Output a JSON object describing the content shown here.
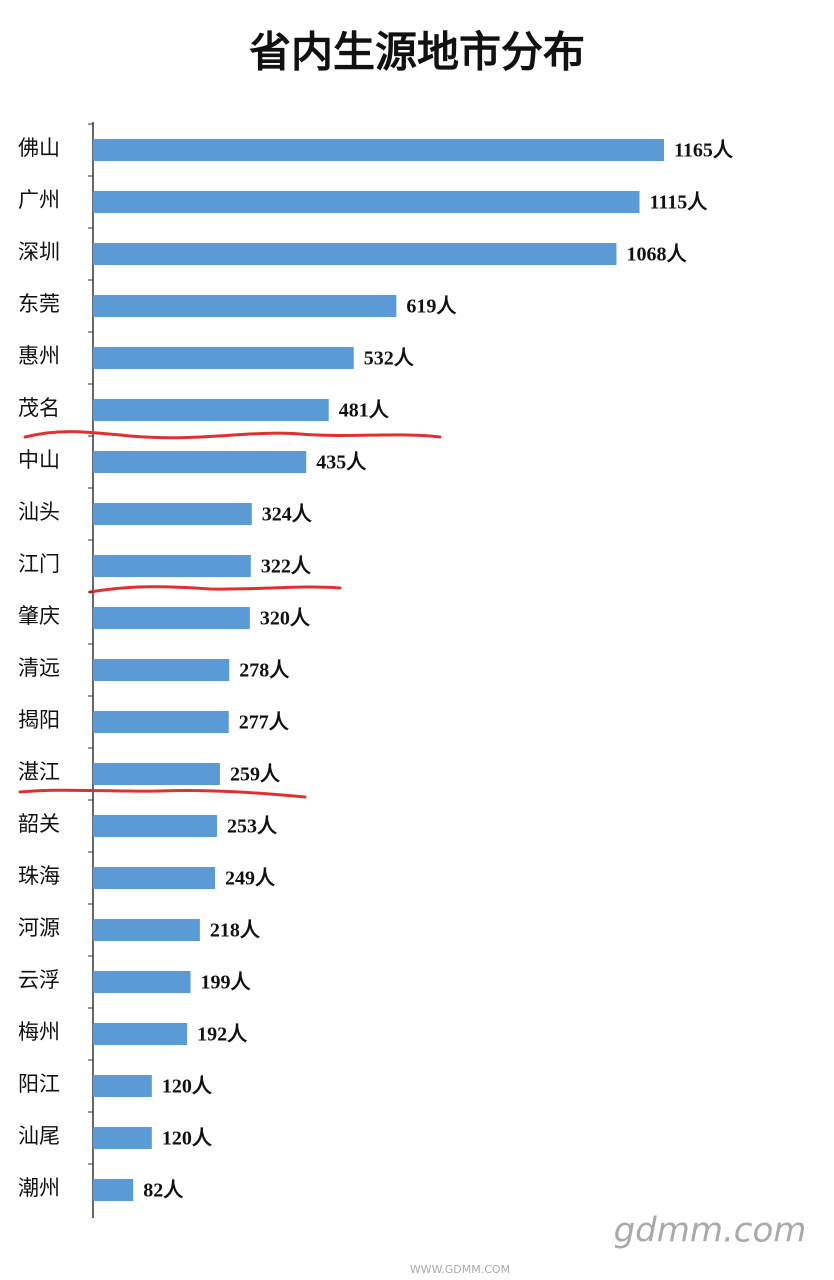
{
  "chart_data": {
    "type": "barh",
    "title": "省内生源地市分布",
    "categories": [
      "佛山",
      "广州",
      "深圳",
      "东莞",
      "惠州",
      "茂名",
      "中山",
      "汕头",
      "江门",
      "肇庆",
      "清远",
      "揭阳",
      "湛江",
      "韶关",
      "珠海",
      "河源",
      "云浮",
      "梅州",
      "阳江",
      "汕尾",
      "潮州"
    ],
    "values": [
      1165,
      1115,
      1068,
      619,
      532,
      481,
      435,
      324,
      322,
      320,
      278,
      277,
      259,
      253,
      249,
      218,
      199,
      192,
      120,
      120,
      82
    ],
    "value_labels": [
      "1165人",
      "1115人",
      "1068人",
      "619人",
      "532人",
      "481人",
      "435人",
      "324人",
      "322人",
      "320人",
      "278人",
      "277人",
      "259人",
      "253人",
      "249人",
      "218人",
      "199人",
      "192人",
      "120人",
      "120人",
      "82人"
    ],
    "color": "#5b9bd5",
    "watermark": "gdmm.com",
    "watermark_sub": "WWW.GDMM.COM"
  }
}
